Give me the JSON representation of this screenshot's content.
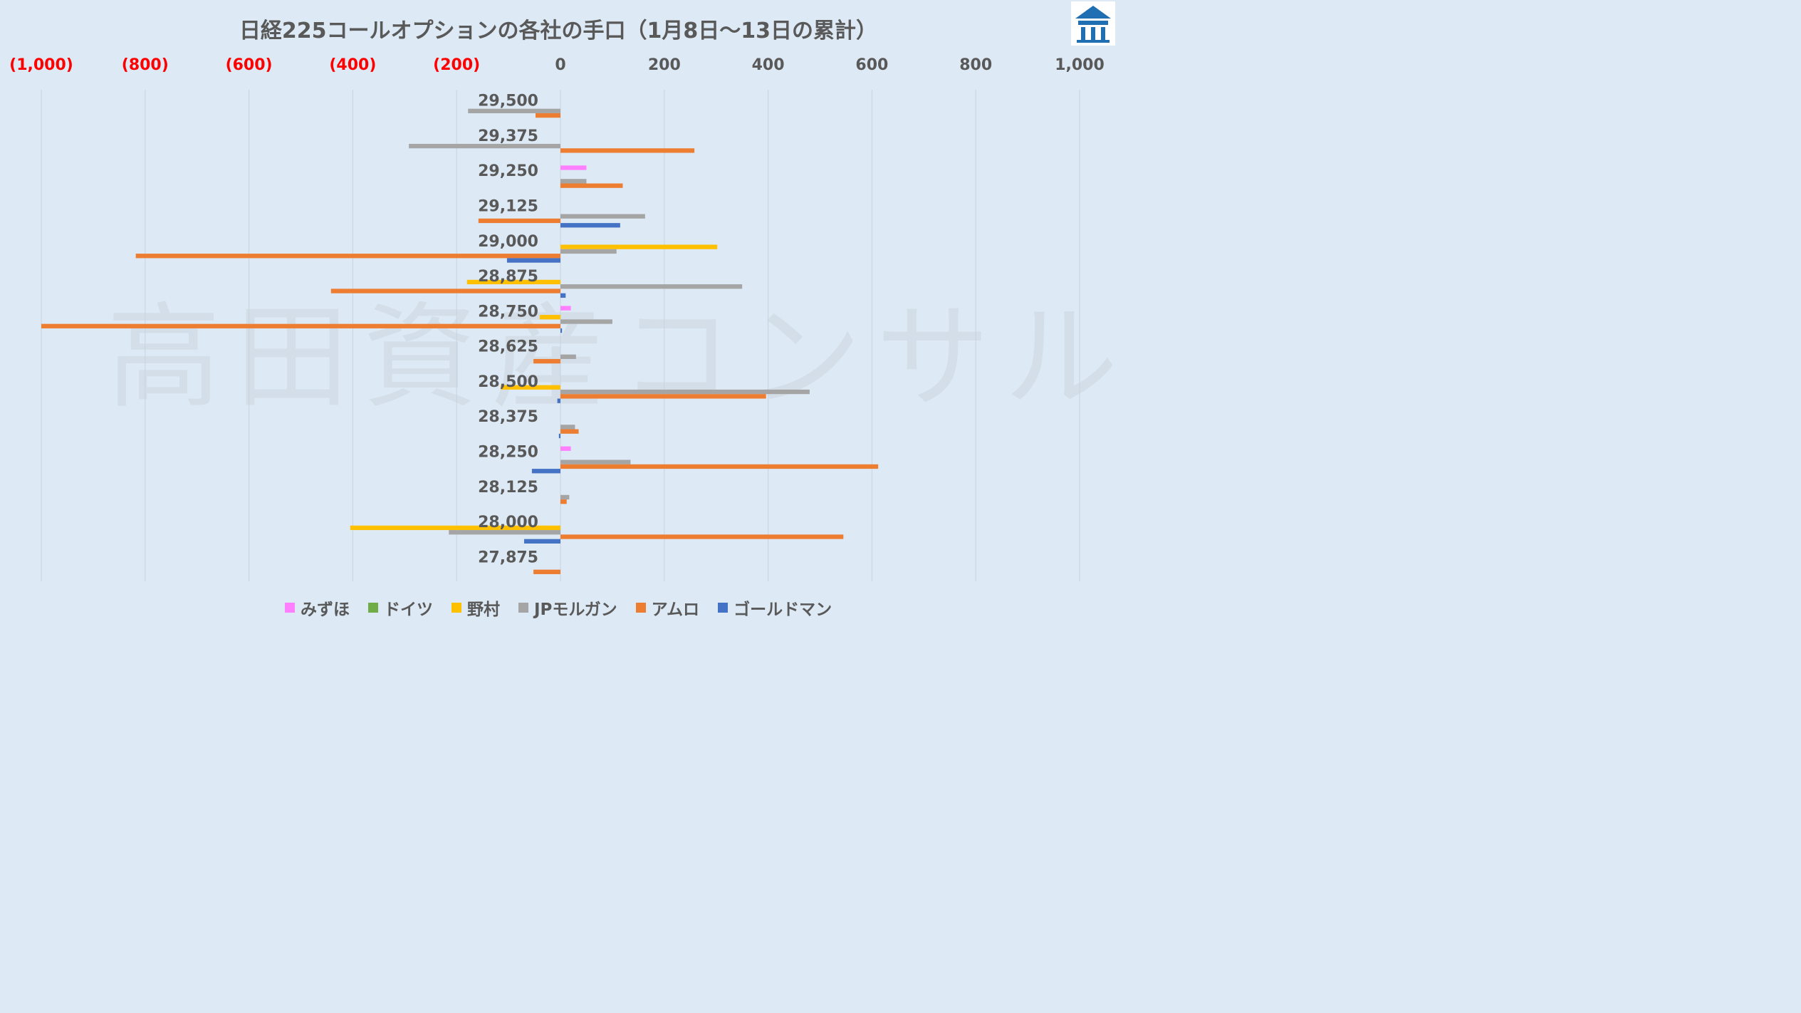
{
  "title": "日経225コールオプションの各社の手口（1月8日～13日の累計）",
  "watermark": "高田資産コンサル",
  "colors": {
    "negative_tick": "#ff0000",
    "positive_tick": "#595959",
    "background": "#dde9f4"
  },
  "chart_data": {
    "type": "bar",
    "orientation": "horizontal",
    "title": "日経225コールオプションの各社の手口（1月8日～13日の累計）",
    "xlim": [
      -1000,
      1000
    ],
    "x_ticks": [
      -1000,
      -800,
      -600,
      -400,
      -200,
      0,
      200,
      400,
      600,
      800,
      1000
    ],
    "x_tick_labels": [
      "(1,000)",
      "(800)",
      "(600)",
      "(400)",
      "(200)",
      "0",
      "200",
      "400",
      "600",
      "800",
      "1,000"
    ],
    "axis_position": "top",
    "grid": true,
    "legend_position": "bottom",
    "categories": [
      "29,500",
      "29,375",
      "29,250",
      "29,125",
      "29,000",
      "28,875",
      "28,750",
      "28,625",
      "28,500",
      "28,375",
      "28,250",
      "28,125",
      "28,000",
      "27,875"
    ],
    "series": [
      {
        "name": "みずほ",
        "color": "#ff80ff",
        "values": [
          0,
          0,
          50,
          0,
          0,
          0,
          20,
          0,
          0,
          0,
          20,
          0,
          0,
          0
        ]
      },
      {
        "name": "ドイツ",
        "color": "#70ad47",
        "values": [
          0,
          0,
          0,
          0,
          0,
          0,
          0,
          0,
          0,
          0,
          0,
          0,
          0,
          0
        ]
      },
      {
        "name": "野村",
        "color": "#ffc000",
        "values": [
          0,
          0,
          0,
          0,
          302,
          -180,
          -40,
          0,
          -115,
          0,
          0,
          0,
          -405,
          0
        ]
      },
      {
        "name": "JPモルガン",
        "color": "#a5a5a5",
        "values": [
          -178,
          -292,
          50,
          163,
          108,
          350,
          100,
          30,
          480,
          28,
          135,
          17,
          -215,
          0
        ]
      },
      {
        "name": "アムロ",
        "color": "#ed7d31",
        "values": [
          -48,
          258,
          120,
          -158,
          -818,
          -442,
          -1000,
          -52,
          396,
          35,
          612,
          12,
          545,
          -52
        ]
      },
      {
        "name": "ゴールドマン",
        "color": "#4472c4",
        "values": [
          0,
          0,
          0,
          115,
          -103,
          10,
          3,
          0,
          -6,
          -3,
          -55,
          0,
          -70,
          0
        ]
      }
    ]
  }
}
